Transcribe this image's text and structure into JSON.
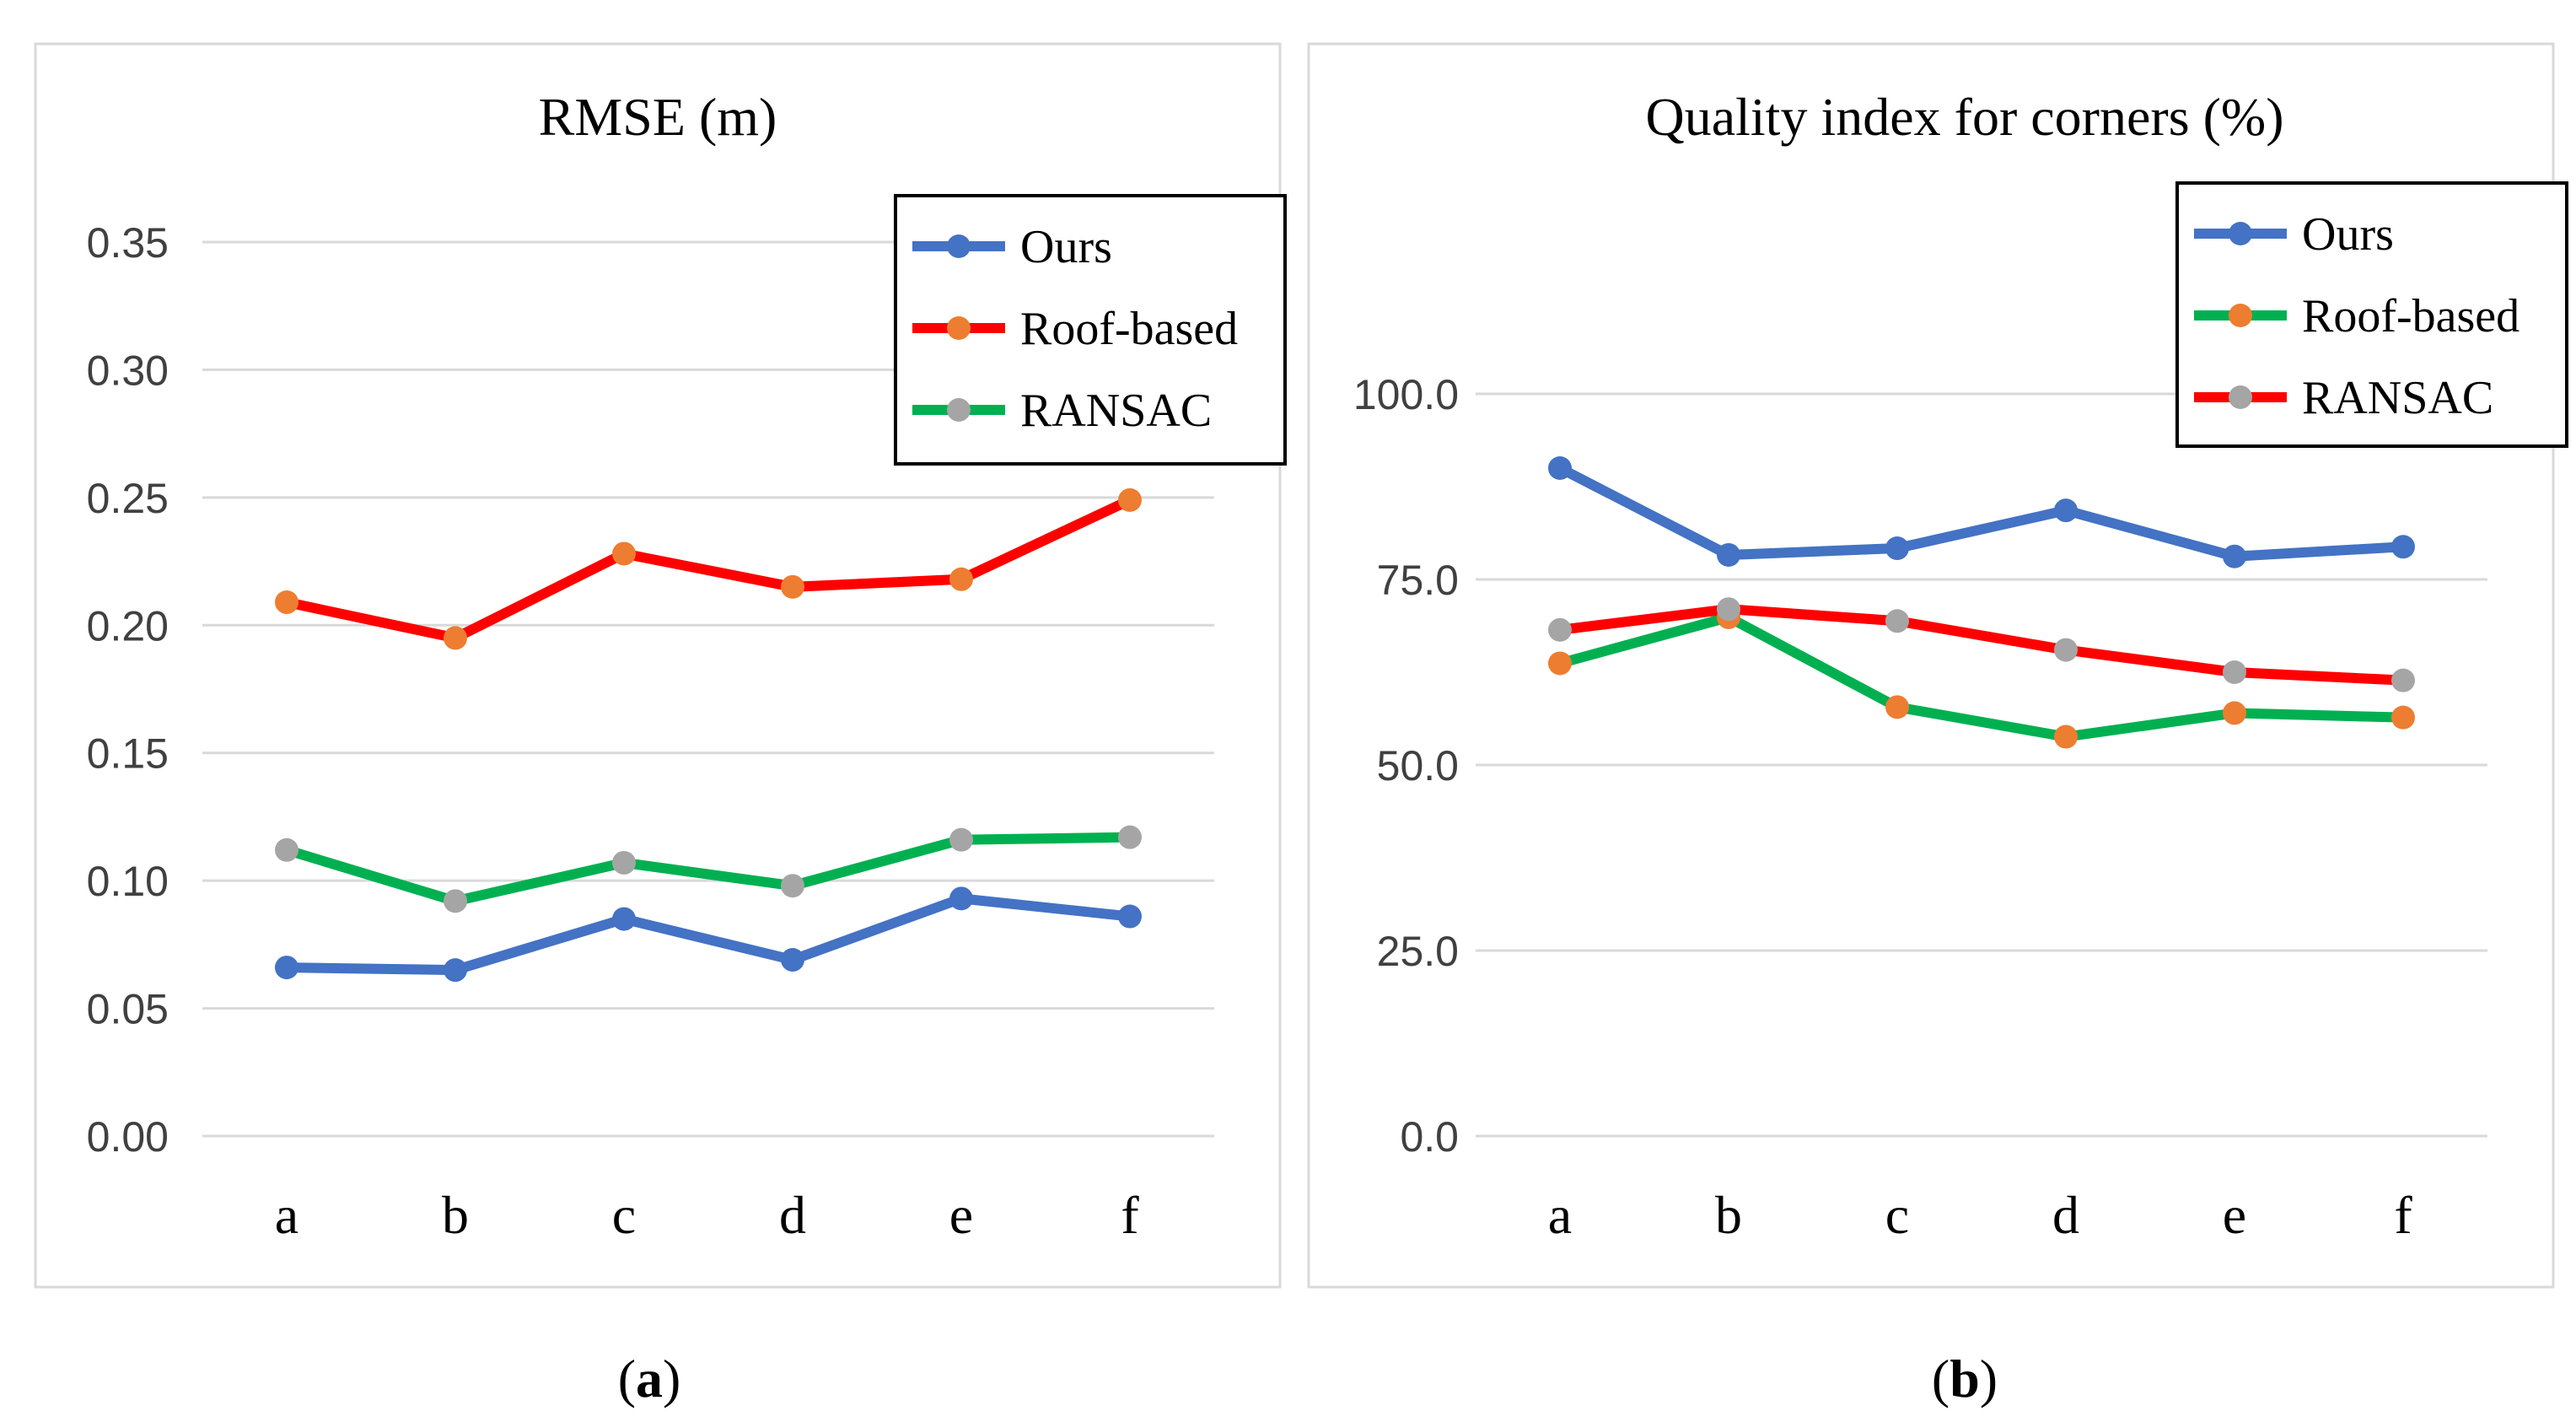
{
  "chart_data": [
    {
      "type": "line",
      "panel_label": "a",
      "title": "RMSE (m)",
      "xlabel": "",
      "ylabel": "",
      "categories": [
        "a",
        "b",
        "c",
        "d",
        "e",
        "f"
      ],
      "ylim": [
        0,
        0.35
      ],
      "yticks": [
        "0.00",
        "0.05",
        "0.10",
        "0.15",
        "0.20",
        "0.25",
        "0.30",
        "0.35"
      ],
      "grid": true,
      "legend_position": "top-right",
      "series": [
        {
          "name": "Ours",
          "line_color": "#4472C4",
          "marker_color": "#4472C4",
          "values": [
            0.066,
            0.065,
            0.085,
            0.069,
            0.093,
            0.086
          ]
        },
        {
          "name": "Roof-based",
          "line_color": "#FF0000",
          "marker_color": "#ED7D31",
          "values": [
            0.209,
            0.195,
            0.228,
            0.215,
            0.218,
            0.249
          ]
        },
        {
          "name": "RANSAC",
          "line_color": "#00B050",
          "marker_color": "#A5A5A5",
          "values": [
            0.112,
            0.092,
            0.107,
            0.098,
            0.116,
            0.117
          ]
        }
      ]
    },
    {
      "type": "line",
      "panel_label": "b",
      "title": "Quality index for corners (%)",
      "xlabel": "",
      "ylabel": "",
      "categories": [
        "a",
        "b",
        "c",
        "d",
        "e",
        "f"
      ],
      "ylim": [
        0,
        100
      ],
      "yticks": [
        "0.0",
        "25.0",
        "50.0",
        "75.0",
        "100.0"
      ],
      "grid": true,
      "legend_position": "top-right",
      "series": [
        {
          "name": "Ours",
          "line_color": "#4472C4",
          "marker_color": "#4472C4",
          "values": [
            90.0,
            78.3,
            79.2,
            84.3,
            78.1,
            79.4
          ]
        },
        {
          "name": "Roof-based",
          "line_color": "#00B050",
          "marker_color": "#ED7D31",
          "values": [
            63.7,
            69.9,
            57.8,
            53.8,
            57.0,
            56.4
          ]
        },
        {
          "name": "RANSAC",
          "line_color": "#FF0000",
          "marker_color": "#A5A5A5",
          "values": [
            68.2,
            71.0,
            69.4,
            65.5,
            62.5,
            61.4
          ]
        }
      ]
    }
  ]
}
